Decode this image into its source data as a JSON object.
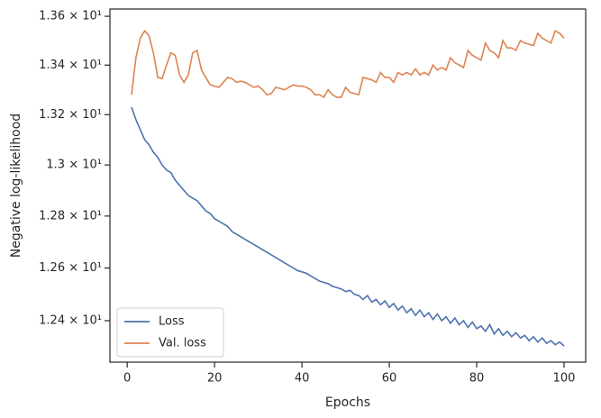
{
  "chart_data": {
    "type": "line",
    "xlabel": "Epochs",
    "ylabel": "Negative log-likelihood",
    "yscale": "log",
    "legend": "lower left",
    "x": [
      1,
      2,
      3,
      4,
      5,
      6,
      7,
      8,
      9,
      10,
      11,
      12,
      13,
      14,
      15,
      16,
      17,
      18,
      19,
      20,
      21,
      22,
      23,
      24,
      25,
      26,
      27,
      28,
      29,
      30,
      31,
      32,
      33,
      34,
      35,
      36,
      37,
      38,
      39,
      40,
      41,
      42,
      43,
      44,
      45,
      46,
      47,
      48,
      49,
      50,
      51,
      52,
      53,
      54,
      55,
      56,
      57,
      58,
      59,
      60,
      61,
      62,
      63,
      64,
      65,
      66,
      67,
      68,
      69,
      70,
      71,
      72,
      73,
      74,
      75,
      76,
      77,
      78,
      79,
      80,
      81,
      82,
      83,
      84,
      85,
      86,
      87,
      88,
      89,
      90,
      91,
      92,
      93,
      94,
      95,
      96,
      97,
      98,
      99,
      100
    ],
    "series": [
      {
        "name": "Loss",
        "color": "#4c72b0",
        "values": [
          13.23,
          13.18,
          13.14,
          13.1,
          13.08,
          13.05,
          13.03,
          13.0,
          12.98,
          12.97,
          12.94,
          12.92,
          12.9,
          12.88,
          12.87,
          12.86,
          12.84,
          12.82,
          12.81,
          12.79,
          12.78,
          12.77,
          12.76,
          12.74,
          12.73,
          12.72,
          12.71,
          12.7,
          12.69,
          12.68,
          12.67,
          12.66,
          12.65,
          12.64,
          12.63,
          12.62,
          12.61,
          12.6,
          12.59,
          12.585,
          12.58,
          12.57,
          12.56,
          12.55,
          12.545,
          12.54,
          12.53,
          12.525,
          12.52,
          12.51,
          12.515,
          12.5,
          12.495,
          12.48,
          12.495,
          12.47,
          12.48,
          12.46,
          12.475,
          12.45,
          12.465,
          12.44,
          12.455,
          12.43,
          12.445,
          12.42,
          12.44,
          12.415,
          12.43,
          12.405,
          12.425,
          12.4,
          12.415,
          12.39,
          12.41,
          12.385,
          12.4,
          12.375,
          12.395,
          12.37,
          12.38,
          12.36,
          12.385,
          12.35,
          12.37,
          12.345,
          12.36,
          12.34,
          12.355,
          12.335,
          12.345,
          12.325,
          12.34,
          12.32,
          12.335,
          12.315,
          12.325,
          12.31,
          12.32,
          12.305
        ]
      },
      {
        "name": "Val. loss",
        "color": "#dd8452",
        "values": [
          13.28,
          13.43,
          13.51,
          13.54,
          13.52,
          13.45,
          13.35,
          13.345,
          13.4,
          13.45,
          13.44,
          13.36,
          13.33,
          13.36,
          13.45,
          13.46,
          13.38,
          13.35,
          13.32,
          13.315,
          13.31,
          13.33,
          13.35,
          13.345,
          13.33,
          13.335,
          13.33,
          13.32,
          13.31,
          13.315,
          13.3,
          13.28,
          13.285,
          13.31,
          13.305,
          13.3,
          13.31,
          13.32,
          13.315,
          13.315,
          13.31,
          13.3,
          13.28,
          13.28,
          13.27,
          13.3,
          13.28,
          13.27,
          13.27,
          13.31,
          13.29,
          13.285,
          13.28,
          13.35,
          13.345,
          13.34,
          13.33,
          13.37,
          13.35,
          13.35,
          13.33,
          13.37,
          13.36,
          13.37,
          13.36,
          13.385,
          13.36,
          13.37,
          13.36,
          13.4,
          13.38,
          13.39,
          13.38,
          13.43,
          13.41,
          13.4,
          13.39,
          13.46,
          13.44,
          13.43,
          13.42,
          13.49,
          13.46,
          13.45,
          13.43,
          13.5,
          13.47,
          13.47,
          13.46,
          13.5,
          13.49,
          13.485,
          13.48,
          13.53,
          13.51,
          13.5,
          13.49,
          13.54,
          13.53,
          13.51
        ]
      }
    ],
    "xlim": [
      -3.95,
      104.95
    ],
    "xticks": [
      0,
      20,
      40,
      60,
      80,
      100
    ],
    "ylim": [
      12.245,
      13.63
    ],
    "yticks": [
      {
        "value": 12.4,
        "label": "1.24 × 10¹"
      },
      {
        "value": 12.6,
        "label": "1.26 × 10¹"
      },
      {
        "value": 12.8,
        "label": "1.28 × 10¹"
      },
      {
        "value": 13.0,
        "label": "1.3 × 10¹"
      },
      {
        "value": 13.2,
        "label": "1.32 × 10¹"
      },
      {
        "value": 13.4,
        "label": "1.34 × 10¹"
      },
      {
        "value": 13.6,
        "label": "1.36 × 10¹"
      }
    ]
  }
}
